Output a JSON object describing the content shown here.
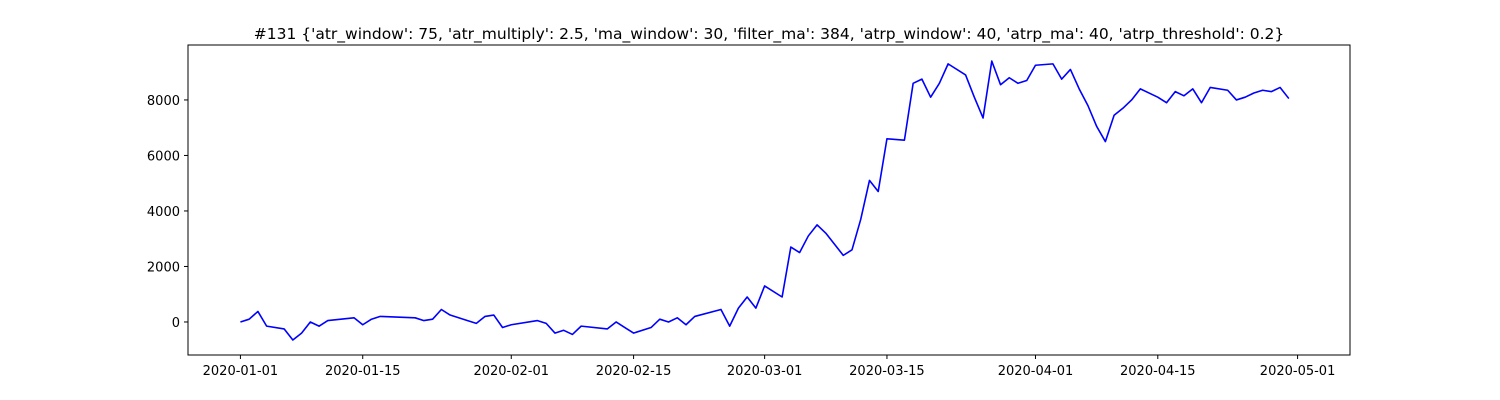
{
  "chart_data": {
    "type": "line",
    "title": "#131 {'atr_window': 75, 'atr_multiply': 2.5, 'ma_window': 30, 'filter_ma': 384, 'atrp_window': 40, 'atrp_ma': 40, 'atrp_threshold': 0.2}",
    "x": [
      "2020-01-01",
      "2020-01-02",
      "2020-01-03",
      "2020-01-04",
      "2020-01-06",
      "2020-01-07",
      "2020-01-08",
      "2020-01-09",
      "2020-01-10",
      "2020-01-11",
      "2020-01-14",
      "2020-01-15",
      "2020-01-16",
      "2020-01-17",
      "2020-01-21",
      "2020-01-22",
      "2020-01-23",
      "2020-01-24",
      "2020-01-25",
      "2020-01-27",
      "2020-01-28",
      "2020-01-29",
      "2020-01-30",
      "2020-01-31",
      "2020-02-01",
      "2020-02-04",
      "2020-02-05",
      "2020-02-06",
      "2020-02-07",
      "2020-02-08",
      "2020-02-09",
      "2020-02-12",
      "2020-02-13",
      "2020-02-14",
      "2020-02-15",
      "2020-02-17",
      "2020-02-18",
      "2020-02-19",
      "2020-02-20",
      "2020-02-21",
      "2020-02-22",
      "2020-02-25",
      "2020-02-26",
      "2020-02-27",
      "2020-02-28",
      "2020-02-29",
      "2020-03-01",
      "2020-03-03",
      "2020-03-04",
      "2020-03-05",
      "2020-03-06",
      "2020-03-07",
      "2020-03-08",
      "2020-03-10",
      "2020-03-11",
      "2020-03-12",
      "2020-03-13",
      "2020-03-14",
      "2020-03-15",
      "2020-03-17",
      "2020-03-18",
      "2020-03-19",
      "2020-03-20",
      "2020-03-21",
      "2020-03-22",
      "2020-03-24",
      "2020-03-25",
      "2020-03-26",
      "2020-03-27",
      "2020-03-28",
      "2020-03-29",
      "2020-03-30",
      "2020-03-31",
      "2020-04-01",
      "2020-04-03",
      "2020-04-04",
      "2020-04-05",
      "2020-04-06",
      "2020-04-07",
      "2020-04-08",
      "2020-04-09",
      "2020-04-10",
      "2020-04-11",
      "2020-04-12",
      "2020-04-13",
      "2020-04-15",
      "2020-04-16",
      "2020-04-17",
      "2020-04-18",
      "2020-04-19",
      "2020-04-20",
      "2020-04-21",
      "2020-04-23",
      "2020-04-24",
      "2020-04-25",
      "2020-04-26",
      "2020-04-27",
      "2020-04-28",
      "2020-04-29",
      "2020-04-30"
    ],
    "series": [
      {
        "color": "#0000ff",
        "values": [
          0,
          100,
          380,
          -150,
          -250,
          -650,
          -400,
          0,
          -150,
          50,
          150,
          -100,
          100,
          200,
          150,
          50,
          100,
          450,
          250,
          50,
          -50,
          200,
          250,
          -200,
          -100,
          50,
          -50,
          -400,
          -300,
          -450,
          -150,
          -250,
          0,
          -200,
          -400,
          -200,
          100,
          0,
          150,
          -100,
          200,
          450,
          -150,
          500,
          900,
          500,
          1300,
          900,
          2700,
          2500,
          3100,
          3500,
          3200,
          2400,
          2600,
          3700,
          5100,
          4700,
          6600,
          6550,
          8600,
          8750,
          8100,
          8600,
          9300,
          8900,
          8100,
          7350,
          9400,
          8550,
          8800,
          8600,
          8700,
          9250,
          9300,
          8750,
          9100,
          8400,
          7800,
          7050,
          6500,
          7450,
          7700,
          8000,
          8400,
          8100,
          7900,
          8300,
          8150,
          8400,
          7900,
          8450,
          8350,
          8000,
          8100,
          8250,
          8350,
          8300,
          8450,
          8050
        ]
      }
    ],
    "xlim": [
      "2019-12-26",
      "2020-05-07"
    ],
    "xticks": [
      "2020-01-01",
      "2020-01-15",
      "2020-02-01",
      "2020-02-15",
      "2020-03-01",
      "2020-03-15",
      "2020-04-01",
      "2020-04-15",
      "2020-05-01"
    ],
    "ylim": [
      -1190,
      9980
    ],
    "yticks": [
      0,
      2000,
      4000,
      6000,
      8000
    ]
  }
}
